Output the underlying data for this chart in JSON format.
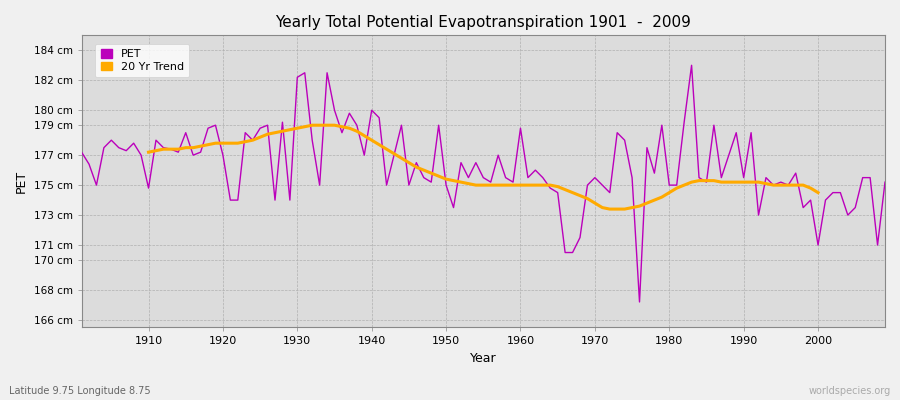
{
  "title": "Yearly Total Potential Evapotranspiration 1901  -  2009",
  "xlabel": "Year",
  "ylabel": "PET",
  "subtitle": "Latitude 9.75 Longitude 8.75",
  "watermark": "worldspecies.org",
  "pet_color": "#bb00bb",
  "trend_color": "#ffaa00",
  "fig_bg_color": "#f0f0f0",
  "plot_bg_color": "#dcdcdc",
  "ylim": [
    165.5,
    185.0
  ],
  "xlim": [
    1901,
    2009
  ],
  "yticks": [
    166,
    168,
    170,
    171,
    173,
    175,
    177,
    179,
    180,
    182,
    184
  ],
  "ytick_labels": [
    "166 cm",
    "168 cm",
    "170 cm",
    "171 cm",
    "173 cm",
    "175 cm",
    "177 cm",
    "179 cm",
    "180 cm",
    "182 cm",
    "184 cm"
  ],
  "xticks": [
    1910,
    1920,
    1930,
    1940,
    1950,
    1960,
    1970,
    1980,
    1990,
    2000
  ],
  "years": [
    1901,
    1902,
    1903,
    1904,
    1905,
    1906,
    1907,
    1908,
    1909,
    1910,
    1911,
    1912,
    1913,
    1914,
    1915,
    1916,
    1917,
    1918,
    1919,
    1920,
    1921,
    1922,
    1923,
    1924,
    1925,
    1926,
    1927,
    1928,
    1929,
    1930,
    1931,
    1932,
    1933,
    1934,
    1935,
    1936,
    1937,
    1938,
    1939,
    1940,
    1941,
    1942,
    1943,
    1944,
    1945,
    1946,
    1947,
    1948,
    1949,
    1950,
    1951,
    1952,
    1953,
    1954,
    1955,
    1956,
    1957,
    1958,
    1959,
    1960,
    1961,
    1962,
    1963,
    1964,
    1965,
    1966,
    1967,
    1968,
    1969,
    1970,
    1971,
    1972,
    1973,
    1974,
    1975,
    1976,
    1977,
    1978,
    1979,
    1980,
    1981,
    1982,
    1983,
    1984,
    1985,
    1986,
    1987,
    1988,
    1989,
    1990,
    1991,
    1992,
    1993,
    1994,
    1995,
    1996,
    1997,
    1998,
    1999,
    2000,
    2001,
    2002,
    2003,
    2004,
    2005,
    2006,
    2007,
    2008,
    2009
  ],
  "pet_values": [
    177.2,
    176.4,
    175.0,
    177.5,
    178.0,
    177.5,
    177.3,
    177.8,
    177.0,
    174.8,
    178.0,
    177.5,
    177.4,
    177.2,
    178.5,
    177.0,
    177.2,
    178.8,
    179.0,
    177.0,
    174.0,
    174.0,
    178.5,
    178.0,
    178.8,
    179.0,
    174.0,
    179.2,
    174.0,
    182.2,
    182.5,
    178.0,
    175.0,
    182.5,
    180.0,
    178.5,
    179.8,
    179.0,
    177.0,
    180.0,
    179.5,
    175.0,
    177.0,
    179.0,
    175.0,
    176.5,
    175.5,
    175.2,
    179.0,
    175.0,
    173.5,
    176.5,
    175.5,
    176.5,
    175.5,
    175.2,
    177.0,
    175.5,
    175.2,
    178.8,
    175.5,
    176.0,
    175.5,
    174.8,
    174.5,
    170.5,
    170.5,
    171.5,
    175.0,
    175.5,
    175.0,
    174.5,
    178.5,
    178.0,
    175.5,
    167.2,
    177.5,
    175.8,
    179.0,
    175.0,
    175.0,
    179.2,
    183.0,
    175.5,
    175.2,
    179.0,
    175.5,
    177.0,
    178.5,
    175.5,
    178.5,
    173.0,
    175.5,
    175.0,
    175.2,
    175.0,
    175.8,
    173.5,
    174.0,
    171.0,
    174.0,
    174.5,
    174.5,
    173.0,
    173.5,
    175.5,
    175.5,
    171.0,
    175.2
  ],
  "trend_years": [
    1910,
    1911,
    1912,
    1913,
    1914,
    1915,
    1916,
    1917,
    1918,
    1919,
    1920,
    1921,
    1922,
    1923,
    1924,
    1925,
    1926,
    1927,
    1928,
    1929,
    1930,
    1931,
    1932,
    1933,
    1934,
    1935,
    1936,
    1937,
    1938,
    1939,
    1940,
    1941,
    1942,
    1943,
    1944,
    1945,
    1946,
    1947,
    1948,
    1949,
    1950,
    1951,
    1952,
    1953,
    1954,
    1955,
    1956,
    1957,
    1958,
    1959,
    1960,
    1961,
    1962,
    1963,
    1964,
    1965,
    1966,
    1967,
    1968,
    1969,
    1970,
    1971,
    1972,
    1973,
    1974,
    1975,
    1976,
    1977,
    1978,
    1979,
    1980,
    1981,
    1982,
    1983,
    1984,
    1985,
    1986,
    1987,
    1988,
    1989,
    1990,
    1991,
    1992,
    1993,
    1994,
    1995,
    1996,
    1997,
    1998,
    1999,
    2000
  ],
  "trend_values": [
    177.2,
    177.3,
    177.4,
    177.4,
    177.4,
    177.5,
    177.5,
    177.6,
    177.7,
    177.8,
    177.8,
    177.8,
    177.8,
    177.9,
    178.0,
    178.2,
    178.4,
    178.5,
    178.6,
    178.7,
    178.8,
    178.9,
    179.0,
    179.0,
    179.0,
    179.0,
    178.9,
    178.8,
    178.6,
    178.3,
    178.0,
    177.7,
    177.4,
    177.1,
    176.8,
    176.5,
    176.2,
    176.0,
    175.8,
    175.6,
    175.4,
    175.3,
    175.2,
    175.1,
    175.0,
    175.0,
    175.0,
    175.0,
    175.0,
    175.0,
    175.0,
    175.0,
    175.0,
    175.0,
    175.0,
    174.9,
    174.7,
    174.5,
    174.3,
    174.1,
    173.8,
    173.5,
    173.4,
    173.4,
    173.4,
    173.5,
    173.6,
    173.8,
    174.0,
    174.2,
    174.5,
    174.8,
    175.0,
    175.2,
    175.3,
    175.3,
    175.3,
    175.2,
    175.2,
    175.2,
    175.2,
    175.2,
    175.2,
    175.1,
    175.0,
    175.0,
    175.0,
    175.0,
    175.0,
    174.8,
    174.5
  ]
}
